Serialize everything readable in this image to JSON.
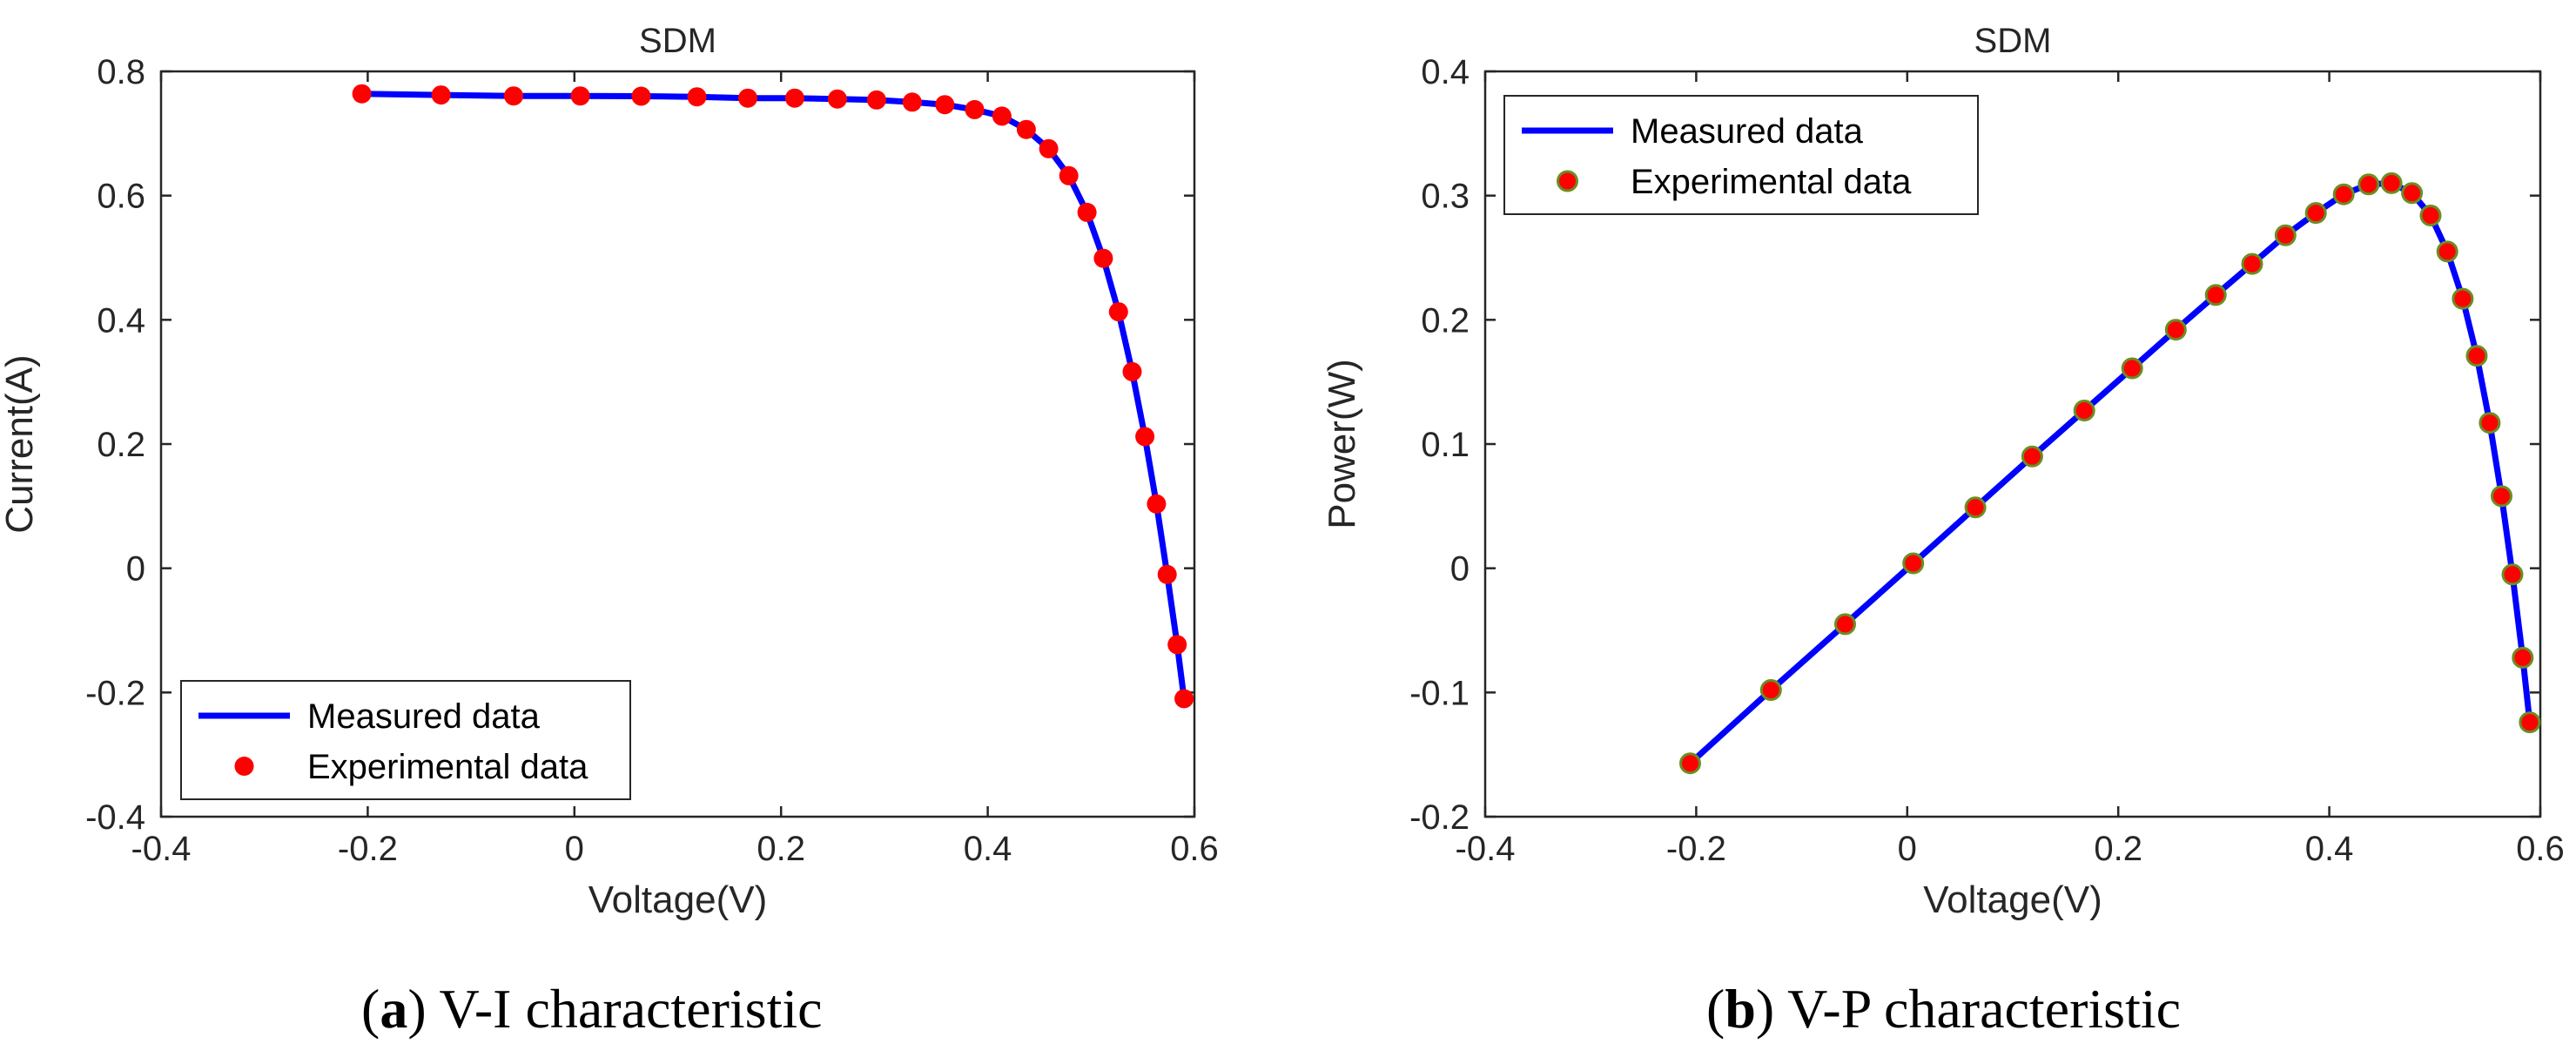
{
  "chart_data": [
    {
      "type": "line",
      "title": "SDM",
      "xlabel": "Voltage(V)",
      "ylabel": "Current(A)",
      "xlim": [
        -0.4,
        0.6
      ],
      "ylim": [
        -0.4,
        0.8
      ],
      "xticks": [
        "-0.4",
        "-0.2",
        "0",
        "0.2",
        "0.4",
        "0.6"
      ],
      "yticks": [
        "-0.4",
        "-0.2",
        "0",
        "0.2",
        "0.4",
        "0.6",
        "0.8"
      ],
      "legend_position": "bottom-left",
      "series": [
        {
          "name": "Measured data",
          "style": "line",
          "color": "#0000FF",
          "x": [
            -0.2057,
            -0.1291,
            -0.0588,
            0.0057,
            0.0646,
            0.1185,
            0.1678,
            0.2132,
            0.2545,
            0.2924,
            0.3269,
            0.3585,
            0.3873,
            0.4137,
            0.4373,
            0.459,
            0.4784,
            0.496,
            0.5119,
            0.5265,
            0.5398,
            0.5521,
            0.5633,
            0.5736,
            0.5833,
            0.59
          ],
          "y": [
            0.764,
            0.762,
            0.7605,
            0.7605,
            0.76,
            0.759,
            0.757,
            0.757,
            0.7555,
            0.754,
            0.7505,
            0.7465,
            0.7385,
            0.728,
            0.7065,
            0.6755,
            0.632,
            0.573,
            0.499,
            0.413,
            0.3165,
            0.212,
            0.1035,
            -0.01,
            -0.123,
            -0.21
          ]
        },
        {
          "name": "Experimental data",
          "style": "marker",
          "color": "#FF0000",
          "x": [
            -0.2057,
            -0.1291,
            -0.0588,
            0.0057,
            0.0646,
            0.1185,
            0.1678,
            0.2132,
            0.2545,
            0.2924,
            0.3269,
            0.3585,
            0.3873,
            0.4137,
            0.4373,
            0.459,
            0.4784,
            0.496,
            0.5119,
            0.5265,
            0.5398,
            0.5521,
            0.5633,
            0.5736,
            0.5833,
            0.59
          ],
          "y": [
            0.764,
            0.762,
            0.7605,
            0.7605,
            0.76,
            0.759,
            0.757,
            0.757,
            0.7555,
            0.754,
            0.7505,
            0.7465,
            0.7385,
            0.728,
            0.7065,
            0.6755,
            0.632,
            0.573,
            0.499,
            0.413,
            0.3165,
            0.212,
            0.1035,
            -0.01,
            -0.123,
            -0.21
          ]
        }
      ]
    },
    {
      "type": "line",
      "title": "SDM",
      "xlabel": "Voltage(V)",
      "ylabel": "Power(W)",
      "xlim": [
        -0.4,
        0.6
      ],
      "ylim": [
        -0.2,
        0.4
      ],
      "xticks": [
        "-0.4",
        "-0.2",
        "0",
        "0.2",
        "0.4",
        "0.6"
      ],
      "yticks": [
        "-0.2",
        "-0.1",
        "0",
        "0.1",
        "0.2",
        "0.3",
        "0.4"
      ],
      "legend_position": "top-left",
      "series": [
        {
          "name": "Measured data",
          "style": "line",
          "color": "#0000FF",
          "x": [
            -0.2057,
            -0.1291,
            -0.0588,
            0.0057,
            0.0646,
            0.1185,
            0.1678,
            0.2132,
            0.2545,
            0.2924,
            0.3269,
            0.3585,
            0.3873,
            0.4137,
            0.4373,
            0.459,
            0.4784,
            0.496,
            0.5119,
            0.5265,
            0.5398,
            0.5521,
            0.5633,
            0.5736,
            0.5833,
            0.59
          ],
          "y": [
            -0.157,
            -0.098,
            -0.045,
            0.004,
            0.049,
            0.09,
            0.127,
            0.161,
            0.192,
            0.22,
            0.245,
            0.268,
            0.286,
            0.301,
            0.309,
            0.31,
            0.302,
            0.284,
            0.255,
            0.217,
            0.171,
            0.117,
            0.058,
            -0.005,
            -0.072,
            -0.124
          ]
        },
        {
          "name": "Experimental data",
          "style": "marker",
          "color": "#FF0000",
          "edge_color": "#6B8E23",
          "x": [
            -0.2057,
            -0.1291,
            -0.0588,
            0.0057,
            0.0646,
            0.1185,
            0.1678,
            0.2132,
            0.2545,
            0.2924,
            0.3269,
            0.3585,
            0.3873,
            0.4137,
            0.4373,
            0.459,
            0.4784,
            0.496,
            0.5119,
            0.5265,
            0.5398,
            0.5521,
            0.5633,
            0.5736,
            0.5833,
            0.59
          ],
          "y": [
            -0.157,
            -0.098,
            -0.045,
            0.004,
            0.049,
            0.09,
            0.127,
            0.161,
            0.192,
            0.22,
            0.245,
            0.268,
            0.286,
            0.301,
            0.309,
            0.31,
            0.302,
            0.284,
            0.255,
            0.217,
            0.171,
            0.117,
            0.058,
            -0.005,
            -0.072,
            -0.124
          ]
        }
      ]
    }
  ],
  "captions": [
    {
      "letter": "a",
      "text": ") V-I characteristic",
      "open": "("
    },
    {
      "letter": "b",
      "text": ") V-P characteristic",
      "open": "("
    }
  ]
}
